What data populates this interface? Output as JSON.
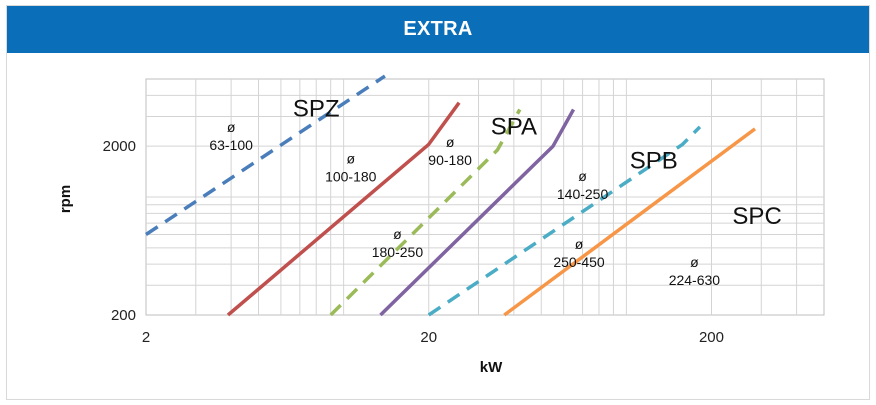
{
  "header": {
    "title": "EXTRA"
  },
  "chart_data": {
    "type": "line",
    "title": "EXTRA",
    "xlabel": "kW",
    "ylabel": "rpm",
    "x_scale": "log",
    "y_scale": "log",
    "xlim": [
      2,
      500
    ],
    "ylim": [
      200,
      5000
    ],
    "x_ticks": [
      2,
      20,
      200
    ],
    "y_ticks": [
      200,
      2000
    ],
    "grid": true,
    "legend": "none",
    "series": [
      {
        "name": "",
        "color": "#4a7ebb",
        "dash": true,
        "points": [
          [
            2,
            600
          ],
          [
            14,
            5200
          ]
        ]
      },
      {
        "name": "",
        "color": "#c0504d",
        "dash": false,
        "points": [
          [
            3.9,
            200
          ],
          [
            20,
            2050
          ],
          [
            25.6,
            3620
          ]
        ]
      },
      {
        "name": "",
        "color": "#9bbb59",
        "dash": true,
        "points": [
          [
            9,
            200
          ],
          [
            35,
            1900
          ],
          [
            42,
            3300
          ]
        ]
      },
      {
        "name": "",
        "color": "#8064a2",
        "dash": false,
        "points": [
          [
            13.5,
            200
          ],
          [
            55,
            2000
          ],
          [
            65,
            3300
          ]
        ]
      },
      {
        "name": "",
        "color": "#4bacc6",
        "dash": true,
        "points": [
          [
            20,
            200
          ],
          [
            158,
            2050
          ],
          [
            182,
            2600
          ]
        ]
      },
      {
        "name": "",
        "color": "#f79646",
        "dash": false,
        "points": [
          [
            37,
            200
          ],
          [
            285,
            2530
          ]
        ]
      }
    ],
    "series_labels": [
      {
        "text": "SPZ",
        "x": 8.0,
        "y": 3000
      },
      {
        "text": "SPA",
        "x": 40.0,
        "y": 2350
      },
      {
        "text": "SPB",
        "x": 125.0,
        "y": 1480
      },
      {
        "text": "SPC",
        "x": 290.0,
        "y": 690
      }
    ],
    "annotations": [
      {
        "symbol": "ø",
        "range": "63-100",
        "x": 4.0,
        "y": 2150
      },
      {
        "symbol": "ø",
        "range": "100-180",
        "x": 10.6,
        "y": 1400
      },
      {
        "symbol": "ø",
        "range": "90-180",
        "x": 23.8,
        "y": 1750
      },
      {
        "symbol": "ø",
        "range": "140-250",
        "x": 70.0,
        "y": 1100
      },
      {
        "symbol": "ø",
        "range": "180-250",
        "x": 15.5,
        "y": 500
      },
      {
        "symbol": "ø",
        "range": "250-450",
        "x": 68.0,
        "y": 435
      },
      {
        "symbol": "ø",
        "range": "224-630",
        "x": 174.0,
        "y": 340
      }
    ]
  }
}
